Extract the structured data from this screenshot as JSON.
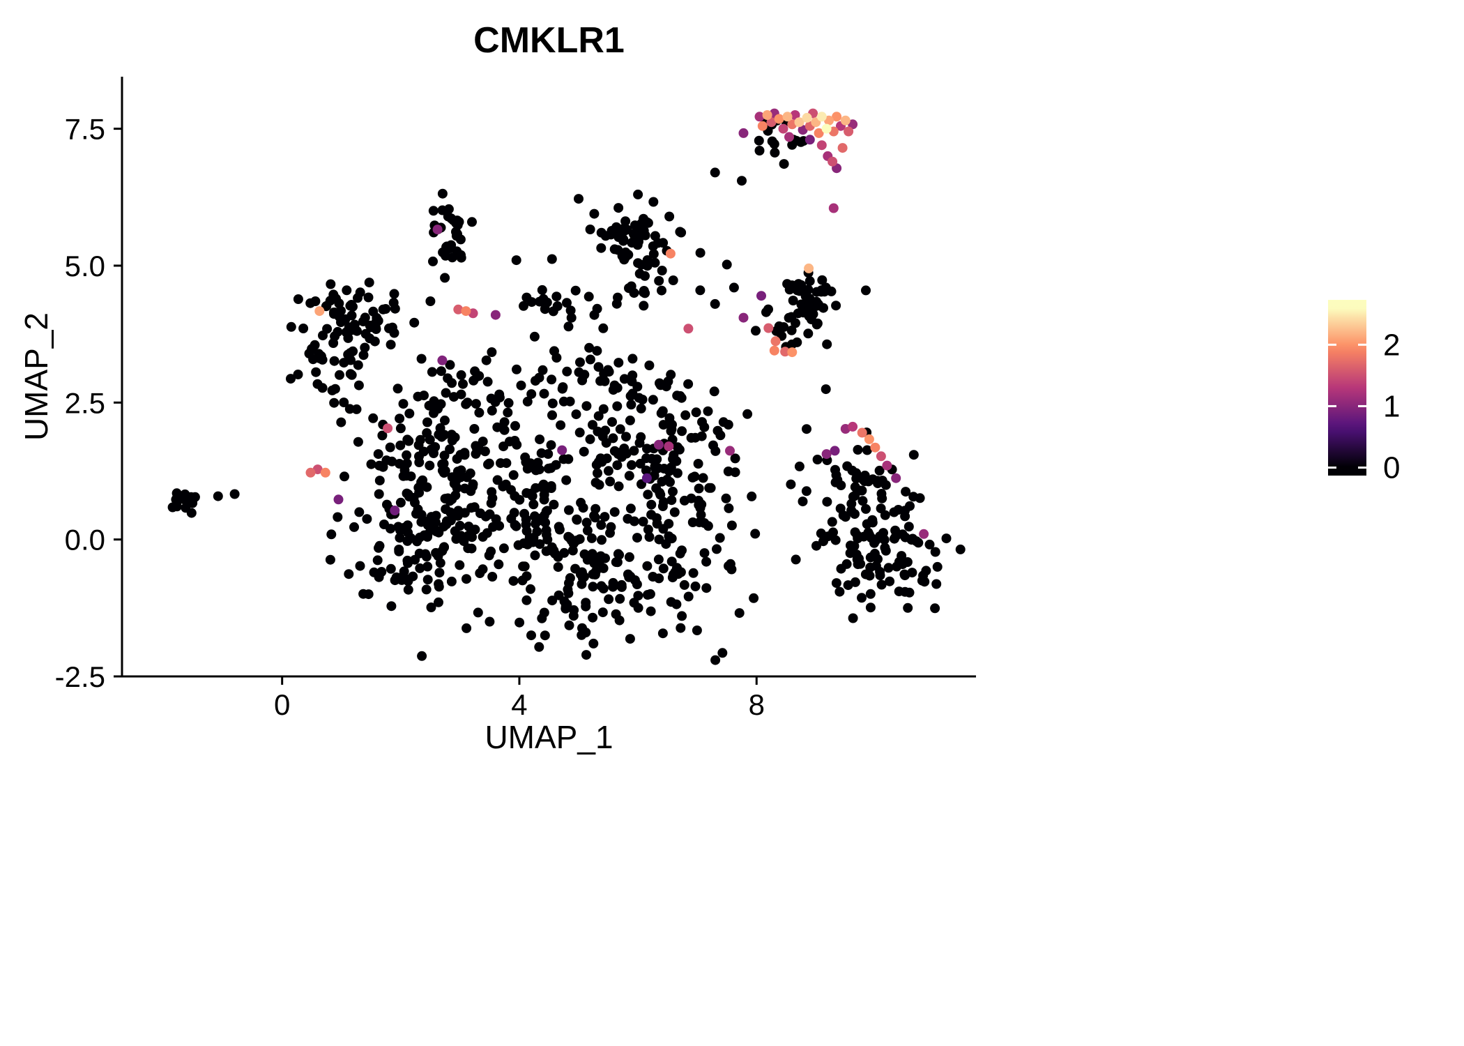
{
  "page": {
    "background": "#ffffff"
  },
  "chart_data": {
    "type": "scatter",
    "title": "CMKLR1",
    "xlabel": "UMAP_1",
    "ylabel": "UMAP_2",
    "xlim": [
      -2.7,
      11.7
    ],
    "ylim": [
      -2.5,
      8.45
    ],
    "grid": false,
    "legend_position": "right",
    "xticks": [
      {
        "v": 0,
        "label": "0"
      },
      {
        "v": 4,
        "label": "4"
      },
      {
        "v": 8,
        "label": "8"
      }
    ],
    "yticks": [
      {
        "v": -2.5,
        "label": "-2.5"
      },
      {
        "v": 0,
        "label": "0.0"
      },
      {
        "v": 2.5,
        "label": "2.5"
      },
      {
        "v": 5,
        "label": "5.0"
      },
      {
        "v": 7.5,
        "label": "7.5"
      }
    ],
    "point_radius": 7,
    "colorbar": {
      "ticks": [
        {
          "v": 0,
          "label": "0"
        },
        {
          "v": 1,
          "label": "1"
        },
        {
          "v": 2,
          "label": "2"
        }
      ],
      "bar_range": [
        -0.13,
        2.73
      ],
      "value_max": 2.6,
      "colormap": "magma",
      "stops": [
        [
          0,
          "#000004"
        ],
        [
          0.25,
          "#51127c"
        ],
        [
          0.5,
          "#b73779"
        ],
        [
          0.75,
          "#fc8961"
        ],
        [
          1,
          "#fcfdbf"
        ]
      ]
    },
    "seed": 1337,
    "zero_value_clusters": [
      {
        "name": "left-islet",
        "cx": -1.62,
        "cy": 0.7,
        "sx": 0.16,
        "sy": 0.09,
        "n": 15
      },
      {
        "name": "left-upper-a",
        "cx": 1.25,
        "cy": 4.15,
        "sx": 0.42,
        "sy": 0.3,
        "n": 55
      },
      {
        "name": "left-upper-b",
        "cx": 0.95,
        "cy": 3.2,
        "sx": 0.35,
        "sy": 0.35,
        "n": 40
      },
      {
        "name": "top-mid",
        "cx": 2.85,
        "cy": 5.65,
        "sx": 0.22,
        "sy": 0.27,
        "n": 26
      },
      {
        "name": "top-mid-tail",
        "cx": 2.72,
        "cy": 5.05,
        "sx": 0.16,
        "sy": 0.14,
        "n": 6
      },
      {
        "name": "upper-center-a",
        "cx": 5.9,
        "cy": 5.5,
        "sx": 0.36,
        "sy": 0.3,
        "n": 55
      },
      {
        "name": "upper-center-b",
        "cx": 6.2,
        "cy": 4.75,
        "sx": 0.3,
        "sy": 0.2,
        "n": 16
      },
      {
        "name": "mid-band",
        "cx": 4.7,
        "cy": 4.3,
        "sx": 0.35,
        "sy": 0.18,
        "n": 20
      },
      {
        "name": "central-1",
        "cx": 4.6,
        "cy": 0.9,
        "sx": 1.4,
        "sy": 1.0,
        "n": 240
      },
      {
        "name": "central-2",
        "cx": 5.5,
        "cy": -0.7,
        "sx": 1.1,
        "sy": 0.7,
        "n": 125
      },
      {
        "name": "central-3",
        "cx": 3.0,
        "cy": 0.2,
        "sx": 0.85,
        "sy": 0.85,
        "n": 105
      },
      {
        "name": "central-4",
        "cx": 6.35,
        "cy": 2.1,
        "sx": 0.6,
        "sy": 0.6,
        "n": 55
      },
      {
        "name": "central-5",
        "cx": 2.2,
        "cy": 1.4,
        "sx": 0.5,
        "sy": 0.65,
        "n": 45
      },
      {
        "name": "central-6",
        "cx": 2.0,
        "cy": -0.2,
        "sx": 0.45,
        "sy": 0.5,
        "n": 40
      },
      {
        "name": "central-7",
        "cx": 3.4,
        "cy": 2.9,
        "sx": 0.6,
        "sy": 0.35,
        "n": 25
      },
      {
        "name": "central-8",
        "cx": 5.0,
        "cy": 2.95,
        "sx": 0.6,
        "sy": 0.3,
        "n": 25
      },
      {
        "name": "central-9",
        "cx": 6.9,
        "cy": 0.9,
        "sx": 0.5,
        "sy": 0.8,
        "n": 40
      },
      {
        "name": "right-mid",
        "cx": 8.9,
        "cy": 4.3,
        "sx": 0.33,
        "sy": 0.28,
        "n": 48
      },
      {
        "name": "right-mid-arm",
        "cx": 8.45,
        "cy": 3.65,
        "sx": 0.15,
        "sy": 0.15,
        "n": 6
      },
      {
        "name": "top-right-black",
        "cx": 8.55,
        "cy": 7.35,
        "sx": 0.35,
        "sy": 0.25,
        "n": 14
      },
      {
        "name": "bottom-right-a",
        "cx": 9.65,
        "cy": 0.55,
        "sx": 0.5,
        "sy": 0.6,
        "n": 85
      },
      {
        "name": "bottom-right-b",
        "cx": 10.4,
        "cy": -0.3,
        "sx": 0.5,
        "sy": 0.5,
        "n": 60
      }
    ],
    "zero_value_singles": [
      [
        -1.08,
        0.79
      ],
      [
        -0.8,
        0.83
      ],
      [
        2.5,
        4.35
      ],
      [
        2.35,
        3.3
      ],
      [
        3.95,
        5.1
      ],
      [
        4.55,
        5.12
      ],
      [
        5.0,
        6.22
      ],
      [
        6.0,
        6.3
      ],
      [
        7.5,
        5.02
      ],
      [
        7.62,
        4.6
      ],
      [
        7.05,
        4.55
      ],
      [
        7.3,
        4.3
      ],
      [
        7.3,
        6.7
      ],
      [
        7.75,
        6.55
      ],
      [
        8.05,
        7.1
      ],
      [
        8.3,
        7.22
      ],
      [
        8.62,
        7.3
      ],
      [
        11.2,
        0.02
      ],
      [
        11.05,
        -0.5
      ],
      [
        10.55,
        -1.25
      ],
      [
        4.2,
        -1.75
      ],
      [
        5.25,
        -1.9
      ],
      [
        3.5,
        -1.5
      ],
      [
        1.55,
        -0.6
      ],
      [
        1.3,
        0.5
      ],
      [
        1.05,
        1.15
      ]
    ],
    "expressing_points": [
      [
        0.63,
        4.17,
        2.1
      ],
      [
        0.48,
        1.22,
        1.7
      ],
      [
        0.6,
        1.28,
        1.5
      ],
      [
        0.73,
        1.22,
        1.9
      ],
      [
        0.95,
        0.73,
        0.9
      ],
      [
        1.78,
        2.03,
        1.5
      ],
      [
        1.9,
        0.53,
        0.85
      ],
      [
        2.62,
        5.66,
        1.0
      ],
      [
        2.7,
        3.27,
        0.95
      ],
      [
        2.97,
        4.2,
        1.6
      ],
      [
        3.1,
        4.17,
        1.9
      ],
      [
        3.22,
        4.13,
        1.4
      ],
      [
        3.6,
        4.1,
        1.0
      ],
      [
        4.72,
        1.63,
        0.9
      ],
      [
        6.15,
        1.12,
        0.7
      ],
      [
        6.35,
        1.73,
        1.0
      ],
      [
        6.52,
        1.7,
        1.2
      ],
      [
        7.55,
        1.62,
        1.1
      ],
      [
        6.85,
        3.85,
        1.5
      ],
      [
        6.55,
        5.22,
        1.9
      ],
      [
        7.78,
        4.05,
        1.0
      ],
      [
        8.08,
        4.45,
        0.9
      ],
      [
        8.2,
        3.86,
        1.6
      ],
      [
        8.32,
        3.62,
        1.8
      ],
      [
        8.3,
        3.45,
        1.9
      ],
      [
        8.48,
        3.43,
        1.7
      ],
      [
        8.6,
        3.42,
        2.0
      ],
      [
        8.88,
        4.95,
        2.2
      ],
      [
        7.78,
        7.42,
        1.0
      ],
      [
        8.05,
        7.72,
        1.2
      ],
      [
        8.1,
        7.55,
        1.9
      ],
      [
        8.18,
        7.75,
        2.1
      ],
      [
        8.25,
        7.62,
        1.6
      ],
      [
        8.3,
        7.78,
        1.1
      ],
      [
        8.38,
        7.68,
        2.0
      ],
      [
        8.45,
        7.5,
        1.4
      ],
      [
        8.52,
        7.72,
        2.2
      ],
      [
        8.6,
        7.58,
        1.8
      ],
      [
        8.65,
        7.75,
        1.3
      ],
      [
        8.72,
        7.62,
        2.3
      ],
      [
        8.78,
        7.48,
        1.0
      ],
      [
        8.85,
        7.7,
        2.4
      ],
      [
        8.9,
        7.55,
        1.7
      ],
      [
        8.95,
        7.78,
        1.5
      ],
      [
        9.0,
        7.62,
        2.2
      ],
      [
        9.05,
        7.42,
        1.9
      ],
      [
        9.1,
        7.72,
        2.5
      ],
      [
        9.18,
        7.5,
        2.6
      ],
      [
        9.22,
        7.65,
        2.1
      ],
      [
        9.3,
        7.45,
        1.8
      ],
      [
        9.35,
        7.72,
        2.0
      ],
      [
        9.42,
        7.55,
        1.3
      ],
      [
        9.5,
        7.65,
        2.2
      ],
      [
        9.55,
        7.45,
        1.6
      ],
      [
        9.62,
        7.58,
        1.1
      ],
      [
        8.55,
        7.35,
        1.2
      ],
      [
        8.9,
        7.3,
        0.9
      ],
      [
        9.1,
        7.2,
        1.4
      ],
      [
        9.2,
        7.0,
        1.2
      ],
      [
        9.28,
        6.9,
        1.5
      ],
      [
        9.35,
        6.78,
        1.0
      ],
      [
        9.45,
        7.15,
        1.7
      ],
      [
        9.3,
        6.05,
        1.2
      ],
      [
        9.18,
        1.56,
        1.0
      ],
      [
        9.32,
        1.62,
        0.9
      ],
      [
        9.5,
        2.02,
        1.1
      ],
      [
        9.62,
        2.06,
        1.3
      ],
      [
        9.78,
        1.95,
        1.8
      ],
      [
        9.9,
        1.83,
        2.0
      ],
      [
        10.0,
        1.68,
        1.9
      ],
      [
        10.1,
        1.52,
        1.5
      ],
      [
        10.2,
        1.35,
        1.2
      ],
      [
        10.35,
        1.12,
        1.0
      ],
      [
        10.82,
        0.1,
        1.1
      ]
    ]
  }
}
